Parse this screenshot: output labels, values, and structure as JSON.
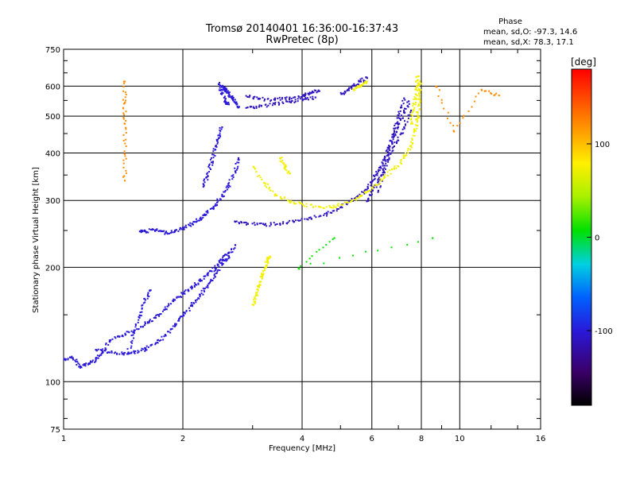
{
  "chart_data": {
    "type": "scatter",
    "title": [
      "Tromsø 20140401 16:36:00-16:37:43",
      "RwPretec (8p)"
    ],
    "xlabel": "Frequency [MHz]",
    "ylabel": "Stationary phase Virtual Height [km]",
    "xscale": "log",
    "yscale": "log",
    "xlim": [
      1,
      16
    ],
    "ylim": [
      75,
      750
    ],
    "x_ticks": [
      1,
      2,
      4,
      6,
      8,
      10,
      16
    ],
    "x_tick_labels": [
      "1",
      "2",
      "4",
      "6",
      "8",
      "10",
      "16"
    ],
    "y_ticks": [
      75,
      100,
      200,
      300,
      400,
      500,
      600,
      750
    ],
    "y_tick_labels": [
      "75",
      "100",
      "200",
      "300",
      "400",
      "500",
      "600",
      "750"
    ],
    "grid": true,
    "phase_stats": {
      "header": "Phase",
      "o_line": "mean, sd,O: -97.3, 14.6",
      "x_line": "mean, sd,X:  78.3, 17.1"
    },
    "colorbar": {
      "label": "[deg]",
      "min": -180,
      "max": 180,
      "ticks": [
        -100,
        0,
        100
      ],
      "tick_labels": [
        "-100",
        "0",
        "100"
      ]
    },
    "series": [
      {
        "phase": -100,
        "segments": [
          [
            [
              1.0,
              115
            ],
            [
              1.05,
              116
            ],
            [
              1.1,
              110
            ],
            [
              1.15,
              112
            ],
            [
              1.2,
              115
            ],
            [
              1.25,
              120
            ],
            [
              1.3,
              128
            ],
            [
              1.4,
              133
            ],
            [
              1.5,
              137
            ],
            [
              1.6,
              143
            ],
            [
              1.7,
              148
            ],
            [
              1.8,
              156
            ],
            [
              1.9,
              165
            ],
            [
              2.0,
              172
            ],
            [
              2.1,
              178
            ],
            [
              2.2,
              185
            ],
            [
              2.3,
              192
            ],
            [
              2.4,
              200
            ],
            [
              2.5,
              210
            ],
            [
              2.6,
              220
            ]
          ],
          [
            [
              1.2,
              122
            ],
            [
              1.3,
              120
            ],
            [
              1.4,
              119
            ],
            [
              1.5,
              120
            ],
            [
              1.6,
              122
            ],
            [
              1.7,
              127
            ],
            [
              1.8,
              133
            ],
            [
              1.9,
              142
            ],
            [
              2.0,
              150
            ],
            [
              2.1,
              160
            ],
            [
              2.2,
              170
            ],
            [
              2.3,
              180
            ],
            [
              2.4,
              190
            ],
            [
              2.5,
              205
            ],
            [
              2.6,
              215
            ],
            [
              2.7,
              230
            ]
          ],
          [
            [
              1.55,
              250
            ],
            [
              1.6,
              250
            ],
            [
              1.7,
              252
            ],
            [
              1.8,
              248
            ],
            [
              1.9,
              250
            ],
            [
              2.0,
              255
            ],
            [
              2.1,
              262
            ],
            [
              2.2,
              270
            ],
            [
              2.3,
              280
            ],
            [
              2.4,
              292
            ],
            [
              2.5,
              310
            ],
            [
              2.6,
              330
            ],
            [
              2.7,
              360
            ],
            [
              2.75,
              390
            ]
          ],
          [
            [
              2.5,
              600
            ],
            [
              2.55,
              590
            ],
            [
              2.6,
              575
            ],
            [
              2.65,
              560
            ],
            [
              2.7,
              545
            ],
            [
              2.75,
              530
            ]
          ],
          [
            [
              2.45,
              610
            ],
            [
              2.5,
              580
            ],
            [
              2.55,
              550
            ],
            [
              2.6,
              540
            ]
          ],
          [
            [
              2.25,
              330
            ],
            [
              2.3,
              350
            ],
            [
              2.35,
              380
            ],
            [
              2.4,
              410
            ],
            [
              2.45,
              440
            ],
            [
              2.5,
              470
            ]
          ],
          [
            [
              1.45,
              120
            ],
            [
              1.5,
              135
            ],
            [
              1.55,
              150
            ],
            [
              1.6,
              165
            ],
            [
              1.65,
              175
            ]
          ]
        ]
      },
      {
        "phase": -110,
        "segments": [
          [
            [
              2.7,
              265
            ],
            [
              2.9,
              262
            ],
            [
              3.2,
              260
            ],
            [
              3.5,
              262
            ],
            [
              3.8,
              265
            ],
            [
              4.2,
              270
            ],
            [
              4.6,
              278
            ],
            [
              5.0,
              290
            ],
            [
              5.4,
              305
            ],
            [
              5.8,
              322
            ],
            [
              6.0,
              340
            ],
            [
              6.2,
              360
            ],
            [
              6.4,
              385
            ],
            [
              6.6,
              415
            ],
            [
              6.8,
              445
            ],
            [
              7.0,
              480
            ],
            [
              7.2,
              515
            ],
            [
              7.4,
              550
            ]
          ],
          [
            [
              2.9,
              565
            ],
            [
              3.1,
              558
            ],
            [
              3.4,
              555
            ],
            [
              3.7,
              560
            ],
            [
              4.0,
              570
            ],
            [
              4.2,
              578
            ],
            [
              4.4,
              585
            ]
          ],
          [
            [
              2.9,
              530
            ],
            [
              3.1,
              532
            ],
            [
              3.4,
              540
            ],
            [
              3.7,
              548
            ],
            [
              4.0,
              556
            ],
            [
              4.3,
              563
            ]
          ],
          [
            [
              5.0,
              575
            ],
            [
              5.2,
              590
            ],
            [
              5.4,
              605
            ],
            [
              5.6,
              620
            ],
            [
              5.8,
              635
            ]
          ],
          [
            [
              6.2,
              320
            ],
            [
              6.4,
              360
            ],
            [
              6.6,
              410
            ],
            [
              6.8,
              460
            ],
            [
              7.0,
              510
            ],
            [
              7.2,
              560
            ]
          ],
          [
            [
              5.8,
              300
            ],
            [
              6.0,
              320
            ],
            [
              6.3,
              350
            ],
            [
              6.6,
              390
            ],
            [
              6.9,
              430
            ],
            [
              7.2,
              470
            ],
            [
              7.5,
              520
            ]
          ]
        ]
      },
      {
        "phase": 75,
        "segments": [
          [
            [
              3.0,
              370
            ],
            [
              3.2,
              335
            ],
            [
              3.4,
              312
            ],
            [
              3.7,
              300
            ],
            [
              4.0,
              294
            ],
            [
              4.4,
              290
            ],
            [
              4.8,
              290
            ],
            [
              5.2,
              298
            ],
            [
              5.6,
              310
            ],
            [
              6.0,
              325
            ],
            [
              6.4,
              345
            ],
            [
              6.8,
              365
            ],
            [
              7.2,
              390
            ],
            [
              7.5,
              420
            ],
            [
              7.7,
              460
            ],
            [
              7.8,
              500
            ],
            [
              7.85,
              540
            ],
            [
              7.9,
              580
            ],
            [
              7.9,
              620
            ]
          ],
          [
            [
              3.5,
              390
            ],
            [
              3.6,
              370
            ],
            [
              3.7,
              355
            ]
          ],
          [
            [
              3.0,
              160
            ],
            [
              3.05,
              170
            ],
            [
              3.1,
              180
            ],
            [
              3.15,
              190
            ],
            [
              3.2,
              200
            ],
            [
              3.25,
              210
            ],
            [
              3.3,
              215
            ]
          ],
          [
            [
              5.4,
              590
            ],
            [
              5.6,
              605
            ],
            [
              5.8,
              620
            ]
          ],
          [
            [
              7.5,
              480
            ],
            [
              7.6,
              520
            ],
            [
              7.7,
              560
            ],
            [
              7.75,
              600
            ],
            [
              7.8,
              640
            ]
          ]
        ]
      },
      {
        "phase": 120,
        "segments": [
          [
            [
              1.42,
              620
            ],
            [
              1.42,
              545
            ],
            [
              1.42,
              480
            ],
            [
              1.42,
              400
            ],
            [
              1.42,
              340
            ]
          ],
          [
            [
              8.7,
              600
            ],
            [
              9.6,
              460
            ],
            [
              11.3,
              590
            ],
            [
              12.5,
              570
            ]
          ]
        ]
      },
      {
        "phase": 10,
        "segments": [
          [
            [
              4.8,
              240
            ],
            [
              3.9,
              200
            ],
            [
              8.5,
              240
            ]
          ]
        ]
      }
    ]
  }
}
